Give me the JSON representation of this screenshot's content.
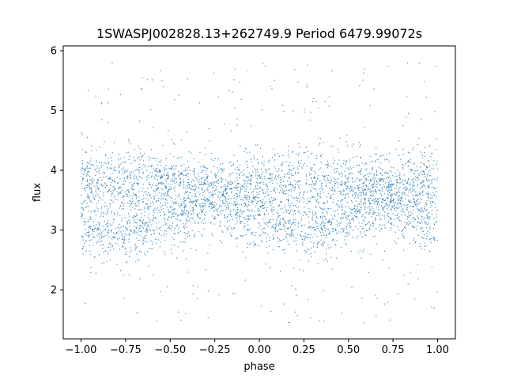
{
  "chart_data": {
    "type": "scatter",
    "title": "1SWASPJ002828.13+262749.9 Period 6479.99072s",
    "xlabel": "phase",
    "ylabel": "flux",
    "xlim": [
      -1.1,
      1.1
    ],
    "ylim": [
      1.18,
      6.08
    ],
    "xticks": [
      -1.0,
      -0.75,
      -0.5,
      -0.25,
      0.0,
      0.25,
      0.5,
      0.75,
      1.0
    ],
    "xtick_labels": [
      "−1.00",
      "−0.75",
      "−0.50",
      "−0.25",
      "0.00",
      "0.25",
      "0.50",
      "0.75",
      "1.00"
    ],
    "yticks": [
      2,
      3,
      4,
      5,
      6
    ],
    "ytick_labels": [
      "2",
      "3",
      "4",
      "5",
      "6"
    ],
    "grid": false,
    "legend": "none",
    "marker_color": "#1f77b4",
    "series": [
      {
        "phase": [
          -1.0,
          -0.75,
          -0.5,
          -0.25,
          0.0,
          0.25,
          0.5,
          0.75,
          1.0
        ],
        "upper_band_center": [
          3.8,
          3.85,
          3.8,
          3.72,
          3.75,
          3.85,
          3.8,
          3.72,
          3.8
        ],
        "lower_band_center": [
          3.05,
          3.0,
          3.2,
          3.45,
          3.2,
          3.0,
          3.2,
          3.45,
          3.05
        ],
        "data_range": [
          1.4,
          5.8
        ]
      }
    ]
  }
}
